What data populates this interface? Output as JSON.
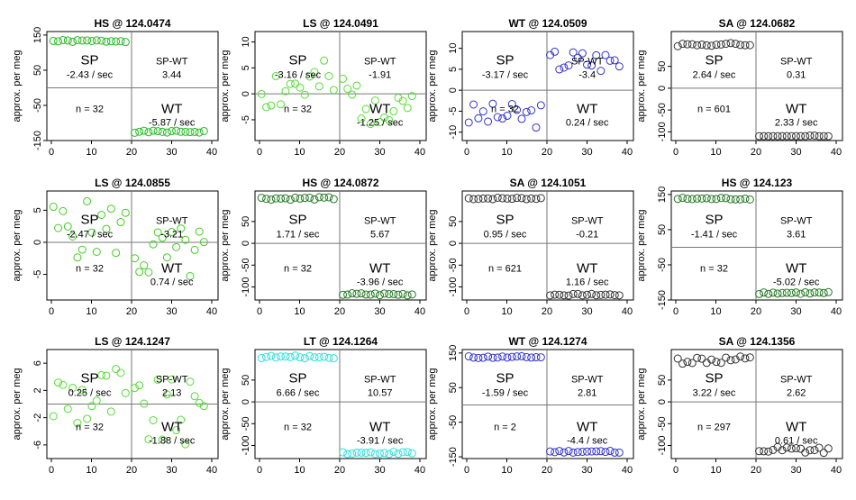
{
  "y_axis_label": "approx. per meg",
  "x_ticks": [
    0,
    10,
    20,
    30,
    40
  ],
  "chart_data": [
    {
      "type": "scatter",
      "title": "HS @ 124.0474",
      "color": "#22bb22",
      "ylim": [
        -150,
        160
      ],
      "yticks": [
        150,
        50,
        -50,
        -150
      ],
      "ylabels": [
        "150",
        "50",
        "-50",
        "-150"
      ],
      "sp_value": -2.43,
      "sp_rate": "-2.43 / sec",
      "wt_rate": "-5.87 / sec",
      "spwt": "3.44",
      "n": "n = 32",
      "shape": "step",
      "a": 133,
      "b": -125,
      "noise": 3,
      "seed": 1
    },
    {
      "type": "scatter",
      "title": "LS @ 124.0491",
      "color": "#55dd33",
      "ylim": [
        -9,
        12
      ],
      "yticks": [
        10,
        5,
        0,
        -5
      ],
      "ylabels": [
        "10",
        "5",
        "0",
        "-5"
      ],
      "sp_rate": "-3.16 / sec",
      "wt_rate": "-1.25 / sec",
      "spwt": "-1.91",
      "n": "n = 32",
      "shape": "noise",
      "a": 1.2,
      "b": -1,
      "noise": 4,
      "seed": 2
    },
    {
      "type": "scatter",
      "title": "WT @ 124.0509",
      "color": "#3333cc",
      "ylim": [
        -12,
        14
      ],
      "yticks": [
        10,
        5,
        0,
        -5,
        -10
      ],
      "ylabels": [
        "10",
        "5",
        "0",
        "-5",
        "-10"
      ],
      "sp_rate": "-3.17 / sec",
      "wt_rate": "0.24 / sec",
      "spwt": "-3.4",
      "n": "n = 32",
      "shape": "step",
      "a": -6,
      "b": 7,
      "noise": 3,
      "seed": 3
    },
    {
      "type": "scatter",
      "title": "SA @ 124.0682",
      "color": "#333333",
      "ylim": [
        -120,
        130
      ],
      "yticks": [
        50,
        0,
        -50,
        -100
      ],
      "ylabels": [
        "50",
        "0",
        "-50",
        "-100"
      ],
      "sp_rate": "2.64 / sec",
      "wt_rate": "2.33 / sec",
      "spwt": "0.31",
      "n": "n = 601",
      "shape": "step",
      "a": 100,
      "b": -112,
      "noise": 4,
      "seed": 4
    },
    {
      "type": "scatter",
      "title": "LS @ 124.0855",
      "color": "#44cc22",
      "ylim": [
        -9,
        8
      ],
      "yticks": [
        5,
        0,
        -5
      ],
      "ylabels": [
        "5",
        "0",
        "-5"
      ],
      "sp_rate": "-2.47 / sec",
      "wt_rate": "0.74 / sec",
      "spwt": "-3.21",
      "n": "n = 32",
      "shape": "noise",
      "a": 2,
      "b": -2,
      "noise": 3.5,
      "seed": 5
    },
    {
      "type": "scatter",
      "title": "HS @ 124.0872",
      "color": "#227722",
      "ylim": [
        -130,
        120
      ],
      "yticks": [
        50,
        0,
        -50,
        -100
      ],
      "ylabels": [
        "50",
        "0",
        "-50",
        "-100"
      ],
      "sp_rate": "1.71 / sec",
      "wt_rate": "-3.96 / sec",
      "spwt": "5.67",
      "n": "n = 32",
      "shape": "step",
      "a": 103,
      "b": -117,
      "noise": 3,
      "seed": 6
    },
    {
      "type": "scatter",
      "title": "SA @ 124.1051",
      "color": "#333333",
      "ylim": [
        -130,
        120
      ],
      "yticks": [
        50,
        0,
        -50,
        -100
      ],
      "ylabels": [
        "50",
        "0",
        "-50",
        "-100"
      ],
      "sp_rate": "0.95 / sec",
      "wt_rate": "1.16 / sec",
      "spwt": "-0.21",
      "n": "n = 621",
      "shape": "step",
      "a": 103,
      "b": -118,
      "noise": 2,
      "seed": 7
    },
    {
      "type": "scatter",
      "title": "HS @ 124.123",
      "color": "#227722",
      "ylim": [
        -150,
        160
      ],
      "yticks": [
        150,
        50,
        -50,
        -150
      ],
      "ylabels": [
        "150",
        "50",
        "-50",
        "-150"
      ],
      "sp_rate": "-1.41 / sec",
      "wt_rate": "-5.02 / sec",
      "spwt": "3.61",
      "n": "n = 32",
      "shape": "step",
      "a": 138,
      "b": -130,
      "noise": 3,
      "seed": 8
    },
    {
      "type": "scatter",
      "title": "LS @ 124.1247",
      "color": "#55dd33",
      "ylim": [
        -8,
        8
      ],
      "yticks": [
        6,
        2,
        -2,
        -6
      ],
      "ylabels": [
        "6",
        "2",
        "-2",
        "-6"
      ],
      "sp_rate": "0.25 / sec",
      "wt_rate": "-1.88 / sec",
      "spwt": "2.13",
      "n": "n = 32",
      "shape": "noise",
      "a": 1,
      "b": -1.5,
      "noise": 4,
      "seed": 9
    },
    {
      "type": "scatter",
      "title": "LT @ 124.1264",
      "color": "#33dddd",
      "ylim": [
        -130,
        120
      ],
      "yticks": [
        50,
        0,
        -50,
        -100
      ],
      "ylabels": [
        "50",
        "0",
        "-50",
        "-100"
      ],
      "sp_rate": "6.66 / sec",
      "wt_rate": "-3.91 / sec",
      "spwt": "10.57",
      "n": "n = 32",
      "shape": "step",
      "a": 103,
      "b": -117,
      "noise": 3,
      "seed": 10
    },
    {
      "type": "scatter",
      "title": "WT @ 124.1274",
      "color": "#3333cc",
      "ylim": [
        -155,
        160
      ],
      "yticks": [
        150,
        50,
        -50,
        -150
      ],
      "ylabels": [
        "150",
        "50",
        "-50",
        "-150"
      ],
      "sp_rate": "-1.59 / sec",
      "wt_rate": "-4.4 / sec",
      "spwt": "2.81",
      "n": "n = 2",
      "shape": "step",
      "a": 138,
      "b": -135,
      "noise": 3,
      "seed": 11
    },
    {
      "type": "scatter",
      "title": "SA @ 124.1356",
      "color": "#333333",
      "ylim": [
        -130,
        120
      ],
      "yticks": [
        50,
        0,
        -50,
        -100
      ],
      "ylabels": [
        "50",
        "0",
        "-50",
        "-100"
      ],
      "sp_rate": "3.22 / sec",
      "wt_rate": "0.61 / sec",
      "spwt": "2.62",
      "n": "n = 297",
      "shape": "step",
      "a": 95,
      "b": -112,
      "noise": 9,
      "seed": 12
    }
  ],
  "labels": {
    "sp": "SP",
    "wt": "WT",
    "spwt": "SP-WT"
  }
}
